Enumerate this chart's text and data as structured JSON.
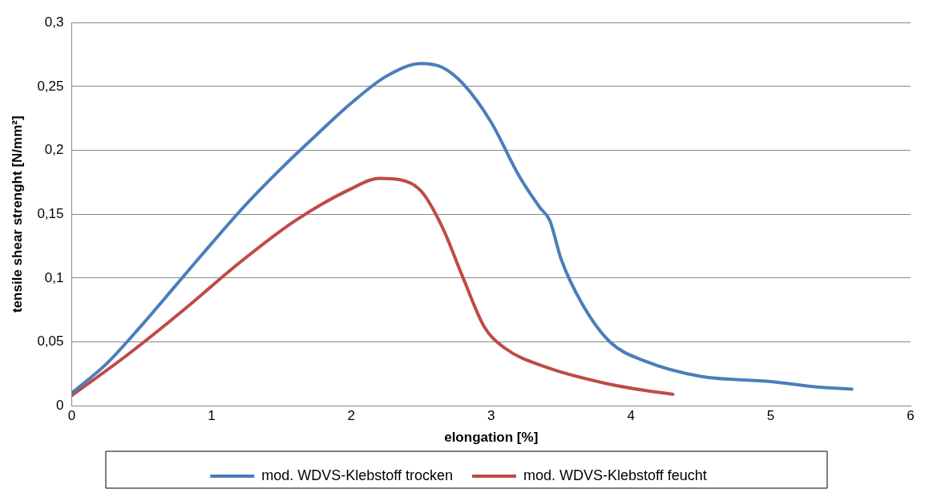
{
  "chart_data": {
    "type": "line",
    "xlabel": "elongation [%]",
    "ylabel": "tensile shear strenght [N/mm²]",
    "xlim": [
      0,
      6
    ],
    "xticks": [
      0,
      1,
      2,
      3,
      4,
      5,
      6
    ],
    "ylim": [
      0,
      0.3
    ],
    "yticks": [
      0,
      {
        "value": 0.05,
        "label": "0,05"
      },
      {
        "value": 0.1,
        "label": "0,1"
      },
      {
        "value": 0.15,
        "label": "0,15"
      },
      {
        "value": 0.2,
        "label": "0,2"
      },
      {
        "value": 0.25,
        "label": "0,25"
      },
      {
        "value": 0.3,
        "label": "0,3"
      }
    ],
    "grid": "y",
    "legend": "bottom",
    "marker": "none",
    "line_style": "solid",
    "series": [
      {
        "name": "mod. WDVS-Klebstoff trocken",
        "color": "#4a7ebb",
        "x": [
          0,
          0.25,
          0.5,
          0.75,
          1.0,
          1.25,
          1.5,
          1.75,
          2.0,
          2.25,
          2.5,
          2.65,
          2.8,
          3.0,
          3.2,
          3.35,
          3.42,
          3.5,
          3.65,
          3.85,
          4.1,
          4.5,
          5.0,
          5.3,
          5.58
        ],
        "values": [
          0.01,
          0.033,
          0.063,
          0.095,
          0.127,
          0.158,
          0.186,
          0.212,
          0.237,
          0.258,
          0.268,
          0.265,
          0.252,
          0.222,
          0.18,
          0.155,
          0.145,
          0.115,
          0.08,
          0.05,
          0.035,
          0.023,
          0.019,
          0.015,
          0.013
        ]
      },
      {
        "name": "mod. WDVS-Klebstoff feucht",
        "color": "#be4b48",
        "x": [
          0,
          0.4,
          0.8,
          1.2,
          1.6,
          2.0,
          2.2,
          2.35,
          2.5,
          2.65,
          2.8,
          2.95,
          3.1,
          3.4,
          3.8,
          4.1,
          4.3
        ],
        "values": [
          0.008,
          0.04,
          0.075,
          0.112,
          0.145,
          0.17,
          0.178,
          0.177,
          0.168,
          0.14,
          0.1,
          0.062,
          0.045,
          0.03,
          0.018,
          0.012,
          0.009
        ]
      }
    ]
  }
}
